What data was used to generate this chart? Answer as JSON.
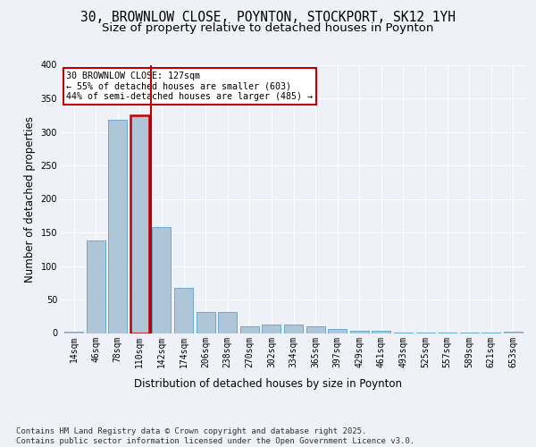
{
  "title1": "30, BROWNLOW CLOSE, POYNTON, STOCKPORT, SK12 1YH",
  "title2": "Size of property relative to detached houses in Poynton",
  "xlabel": "Distribution of detached houses by size in Poynton",
  "ylabel": "Number of detached properties",
  "categories": [
    "14sqm",
    "46sqm",
    "78sqm",
    "110sqm",
    "142sqm",
    "174sqm",
    "206sqm",
    "238sqm",
    "270sqm",
    "302sqm",
    "334sqm",
    "365sqm",
    "397sqm",
    "429sqm",
    "461sqm",
    "493sqm",
    "525sqm",
    "557sqm",
    "589sqm",
    "621sqm",
    "653sqm"
  ],
  "values": [
    2,
    138,
    318,
    325,
    158,
    68,
    32,
    32,
    10,
    13,
    13,
    10,
    6,
    4,
    4,
    1,
    1,
    1,
    1,
    1,
    2
  ],
  "bar_color": "#aec6d8",
  "bar_edge_color": "#6aaad4",
  "highlight_bar_index": 3,
  "highlight_color": "#c00000",
  "property_label": "30 BROWNLOW CLOSE: 127sqm",
  "annotation_line1": "← 55% of detached houses are smaller (603)",
  "annotation_line2": "44% of semi-detached houses are larger (485) →",
  "annotation_box_color": "#c00000",
  "background_color": "#eef2f8",
  "grid_color": "#ffffff",
  "ylim": [
    0,
    400
  ],
  "yticks": [
    0,
    50,
    100,
    150,
    200,
    250,
    300,
    350,
    400
  ],
  "footnote": "Contains HM Land Registry data © Crown copyright and database right 2025.\nContains public sector information licensed under the Open Government Licence v3.0.",
  "title_fontsize": 10.5,
  "subtitle_fontsize": 9.5,
  "axis_label_fontsize": 8.5,
  "tick_fontsize": 7,
  "footnote_fontsize": 6.5
}
